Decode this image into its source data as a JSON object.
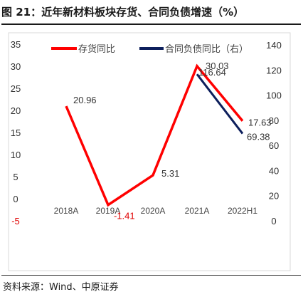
{
  "figure": {
    "title": "图 21：近年新材料板块存货、合同负债增速（%）",
    "source": "资料来源：Wind、中原证券"
  },
  "colors": {
    "inventory": "#ff0000",
    "contract": "#0d1f5c",
    "negative_label": "#e00000"
  },
  "chart_data": {
    "type": "line",
    "categories": [
      "2018A",
      "2019A",
      "2020A",
      "2021A",
      "2022H1"
    ],
    "series": [
      {
        "name": "存货同比",
        "axis": "left",
        "values": [
          20.96,
          -1.41,
          5.31,
          30.03,
          17.63
        ],
        "labels": [
          "20.96",
          "-1.41",
          "5.31",
          "30.03",
          "17.63"
        ]
      },
      {
        "name": "合同负债同比（右）",
        "axis": "right",
        "values": [
          null,
          null,
          null,
          116.64,
          69.38
        ],
        "labels": [
          "",
          "",
          "",
          "116.64",
          "69.38"
        ]
      }
    ],
    "y_left": {
      "ticks": [
        "35",
        "30",
        "25",
        "20",
        "15",
        "10",
        "5",
        "0",
        "-5"
      ],
      "lim": [
        -5,
        35
      ]
    },
    "y_right": {
      "ticks": [
        "140",
        "120",
        "100",
        "80",
        "60",
        "40",
        "20",
        "0"
      ],
      "lim": [
        0,
        140
      ]
    },
    "legend": "top",
    "grid": false
  }
}
